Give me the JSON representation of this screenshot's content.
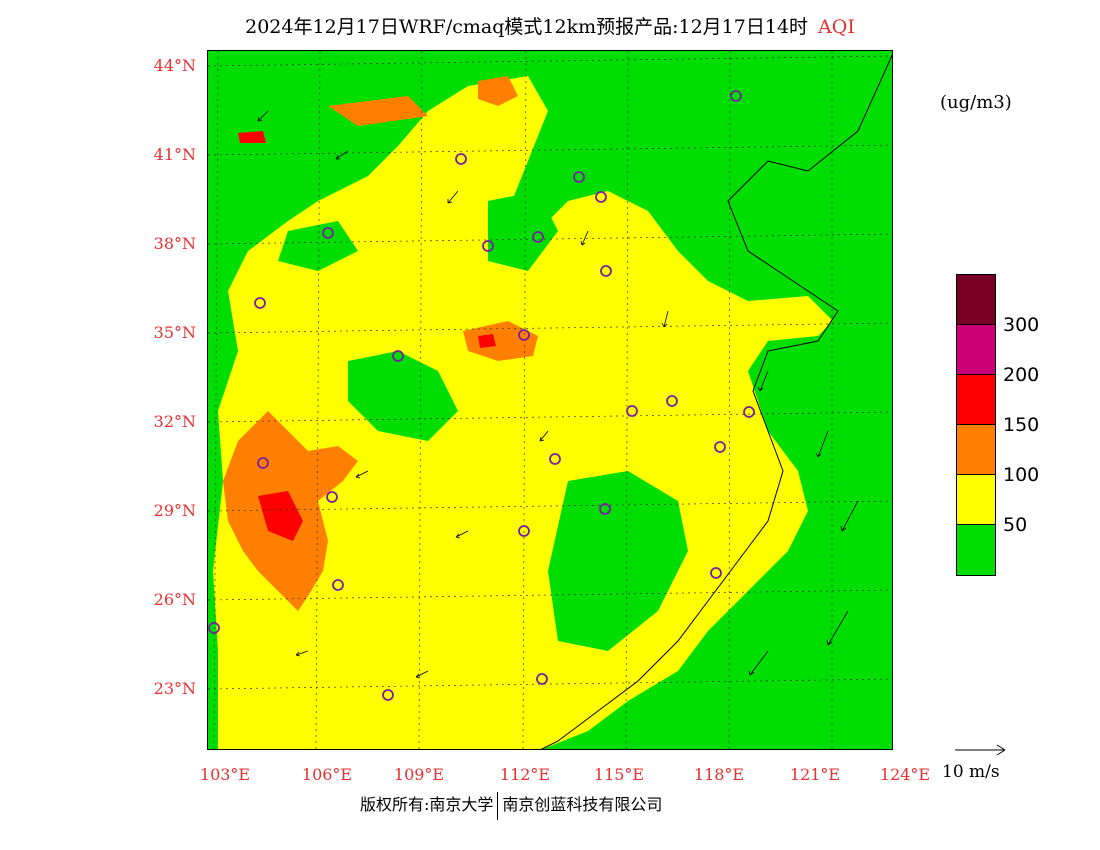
{
  "title": {
    "main": "2024年12月17日WRF/cmaq模式12km预报产品:12月17日14时",
    "variable": "AQI"
  },
  "map": {
    "lat_labels": [
      "44°N",
      "41°N",
      "38°N",
      "35°N",
      "32°N",
      "29°N",
      "26°N",
      "23°N"
    ],
    "lon_labels": [
      "103°E",
      "106°E",
      "109°E",
      "112°E",
      "115°E",
      "118°E",
      "121°E",
      "124°E"
    ],
    "colors": {
      "good": "#00dd00",
      "moderate": "#ffff00",
      "unhealthy_sensitive": "#ff8000",
      "unhealthy": "#ff0000",
      "very_unhealthy": "#cc0077",
      "hazardous": "#7a0026",
      "station_marker": "#7a1fa2",
      "coord_labels": "#e83030"
    }
  },
  "legend": {
    "unit": "(ug/m3)",
    "levels": [
      "300",
      "200",
      "150",
      "100",
      "50"
    ],
    "swatch_colors": [
      "#7a0026",
      "#cc0077",
      "#ff0000",
      "#ff8000",
      "#ffff00",
      "#00dd00"
    ]
  },
  "wind": {
    "reference_label": "10 m/s"
  },
  "footer": {
    "left": "版权所有:南京大学",
    "right": "南京创蓝科技有限公司"
  }
}
